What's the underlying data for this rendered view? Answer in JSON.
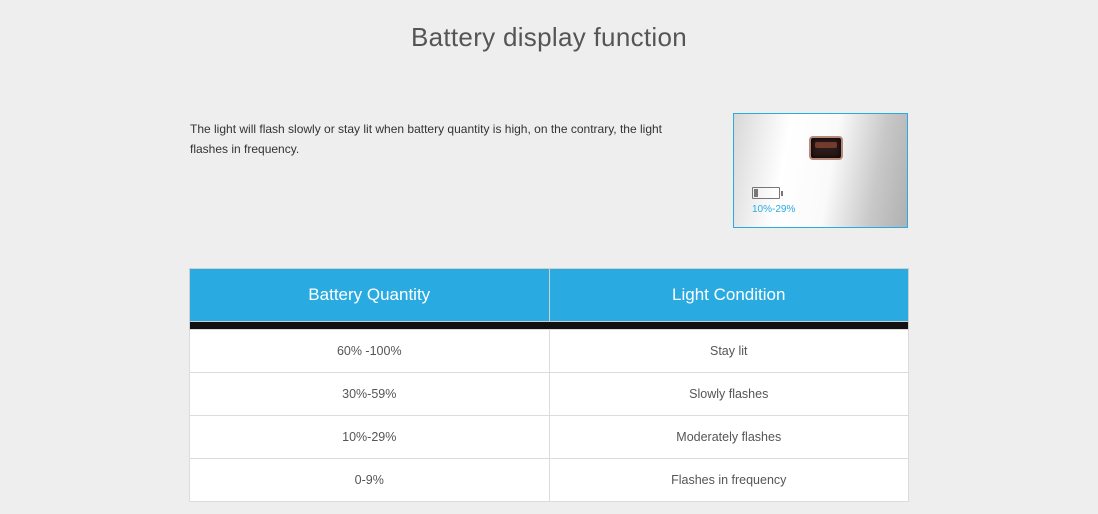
{
  "title": "Battery display function",
  "description": "The light will flash slowly or stay lit when battery quantity is high, on the contrary, the light flashes in frequency.",
  "thumbnail": {
    "border_color": "#29abe2",
    "label": "10%-29%",
    "label_color": "#29abe2"
  },
  "table": {
    "header_bg": "#29abe2",
    "header_text_color": "#ffffff",
    "divider_color": "#111111",
    "row_bg": "#ffffff",
    "border_color": "#dcdcdc",
    "columns": [
      "Battery Quantity",
      "Light Condition"
    ],
    "rows": [
      [
        "60% -100%",
        "Stay lit"
      ],
      [
        "30%-59%",
        "Slowly flashes"
      ],
      [
        "10%-29%",
        "Moderately flashes"
      ],
      [
        "0-9%",
        "Flashes in frequency"
      ]
    ]
  }
}
